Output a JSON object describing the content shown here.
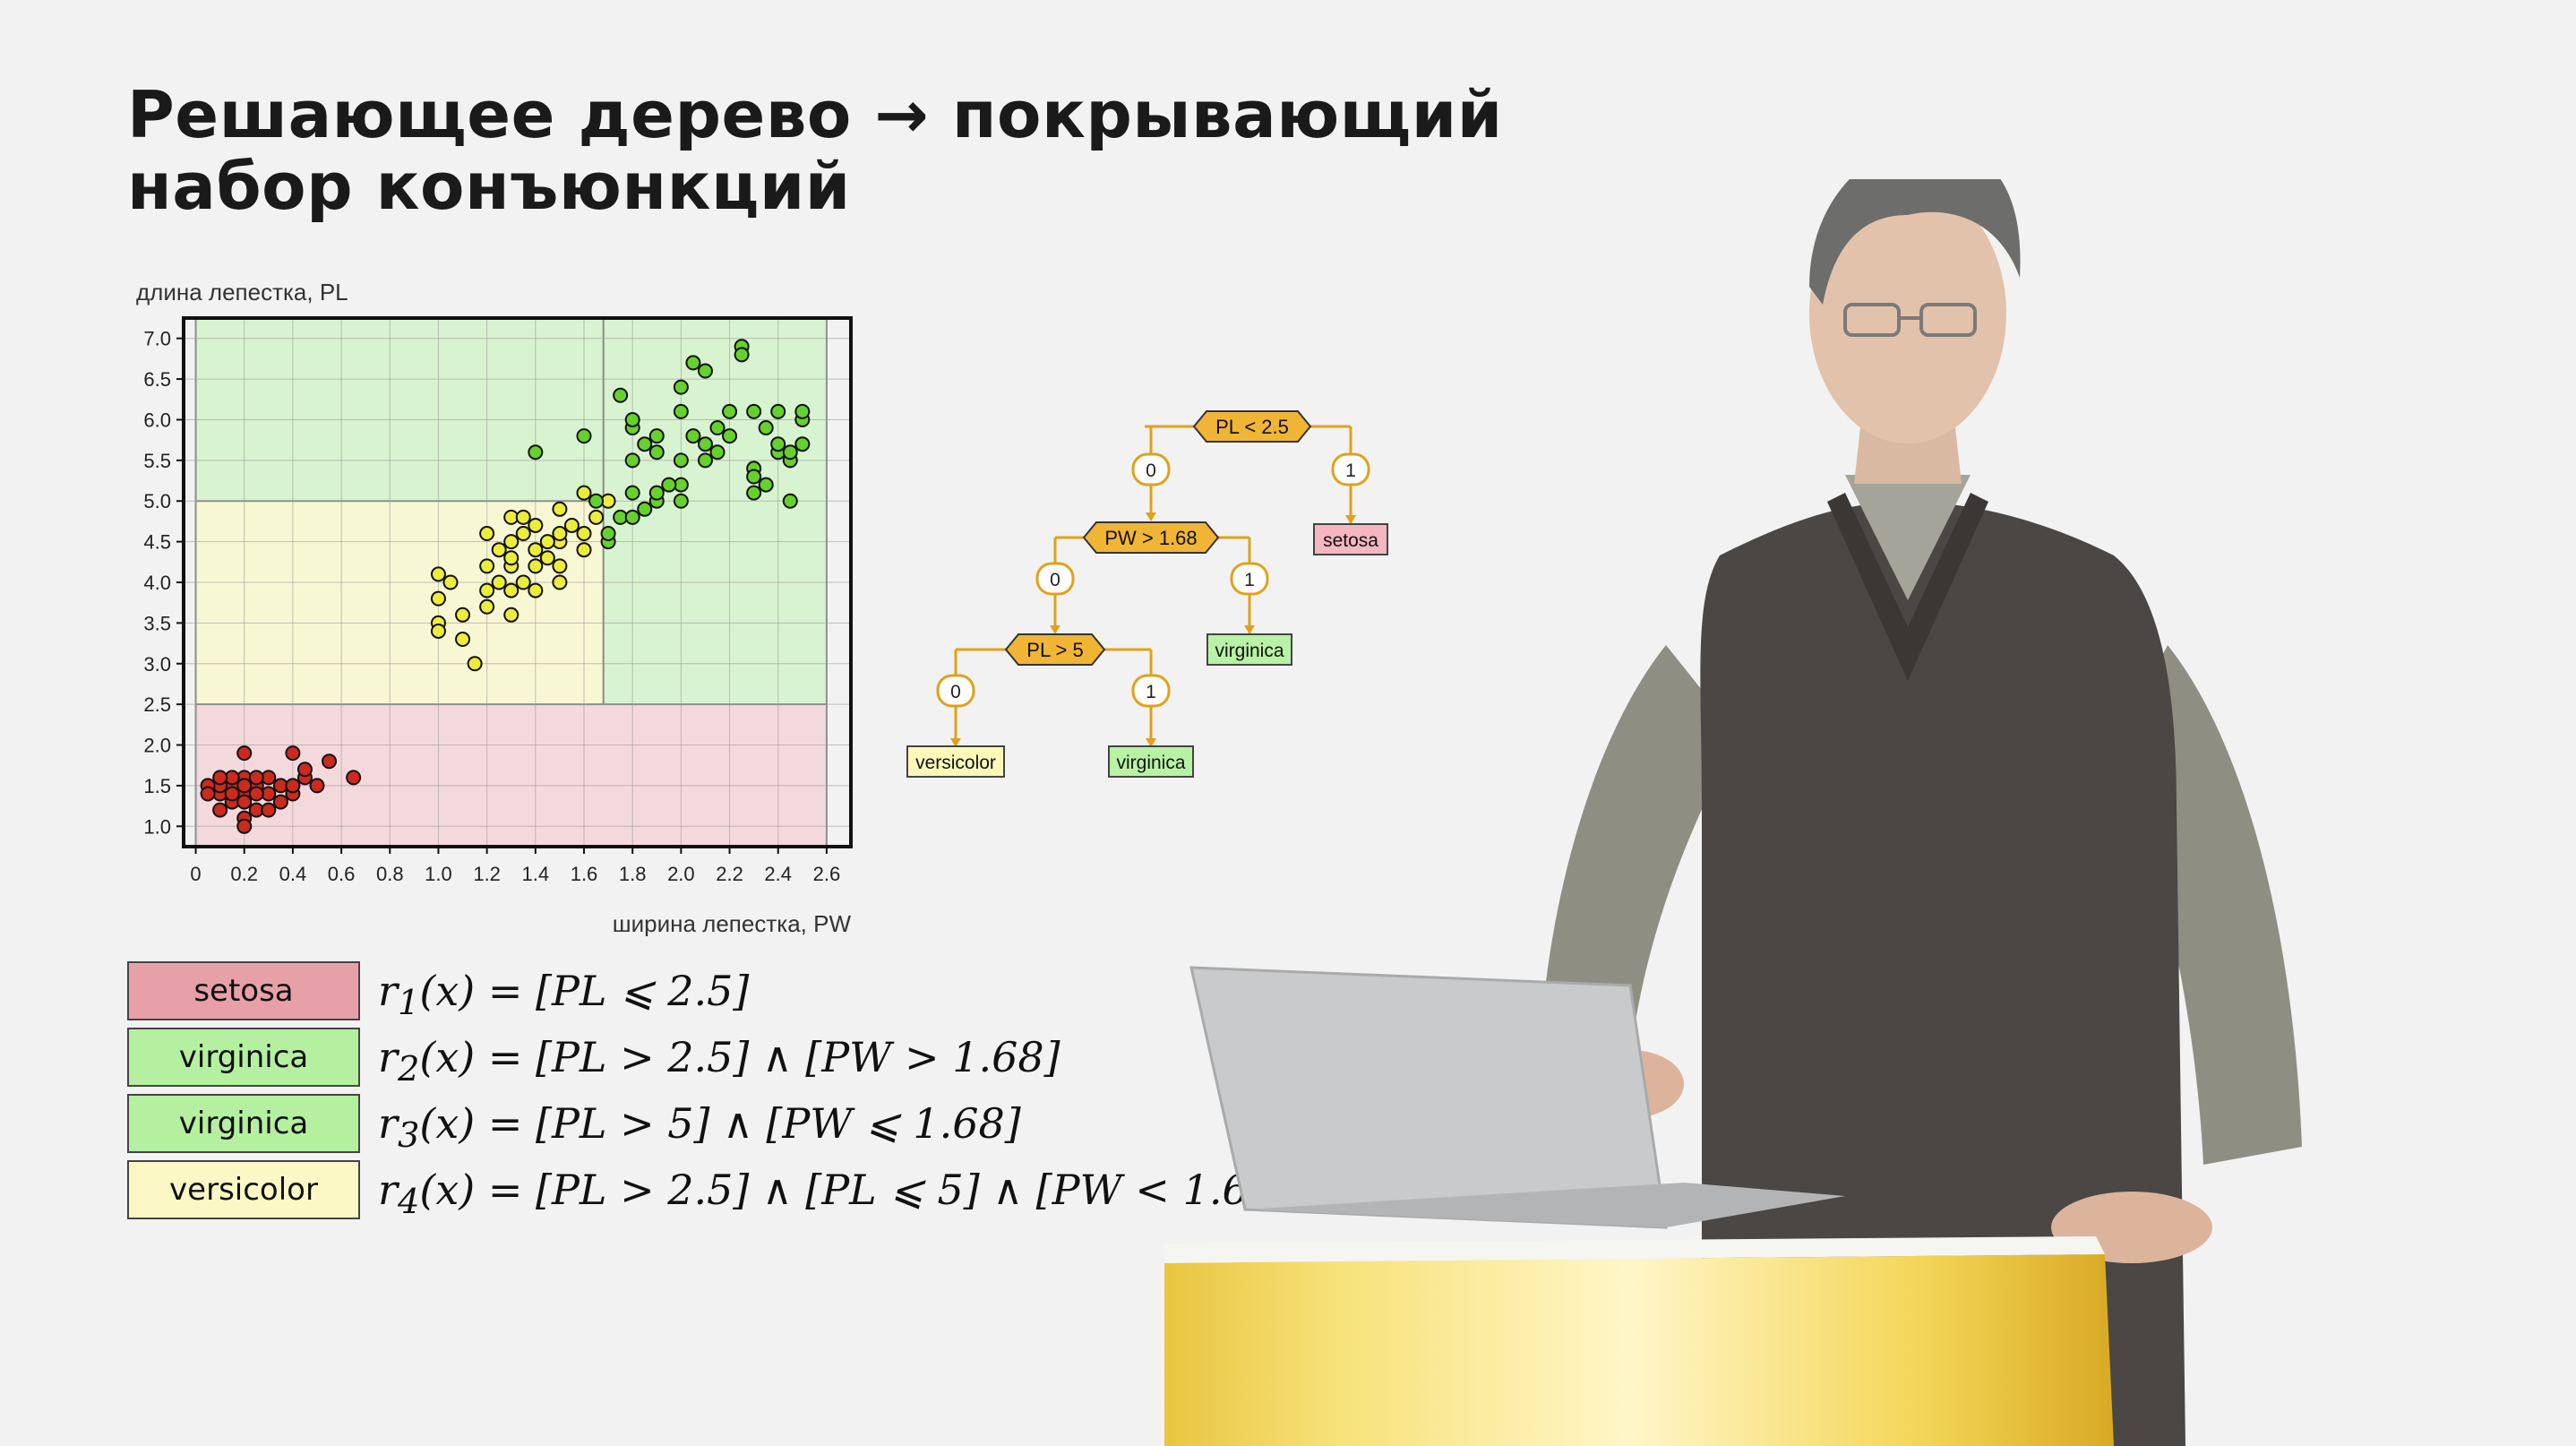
{
  "title": {
    "line1": "Решающее дерево → покрывающий",
    "line2": "набор конъюнкций"
  },
  "chart_data": {
    "type": "scatter",
    "ylabel": "длина лепестка, PL",
    "xlabel": "ширина лепестка, PW",
    "xlim": [
      -0.05,
      2.7
    ],
    "ylim": [
      0.75,
      7.25
    ],
    "xticks": [
      "0",
      "0.2",
      "0.4",
      "0.6",
      "0.8",
      "1.0",
      "1.2",
      "1.4",
      "1.6",
      "1.8",
      "2.0",
      "2.2",
      "2.4",
      "2.6"
    ],
    "yticks": [
      "1.0",
      "1.5",
      "2.0",
      "2.5",
      "3.0",
      "3.5",
      "4.0",
      "4.5",
      "5.0",
      "5.5",
      "6.0",
      "6.5",
      "7.0"
    ],
    "grid": true,
    "regions": [
      {
        "class": "setosa",
        "x": [
          0.0,
          2.6
        ],
        "y": [
          0.75,
          2.5
        ],
        "color": "#f4d9dc"
      },
      {
        "class": "versicolor",
        "x": [
          0.0,
          1.68
        ],
        "y": [
          2.5,
          5.0
        ],
        "color": "#f8f7d4"
      },
      {
        "class": "virginica",
        "x": [
          1.68,
          2.6
        ],
        "y": [
          2.5,
          5.0
        ],
        "color": "#d8f3cf"
      },
      {
        "class": "virginica",
        "x": [
          0.0,
          2.6
        ],
        "y": [
          5.0,
          7.25
        ],
        "color": "#d8f3cf"
      }
    ],
    "series": [
      {
        "class": "setosa",
        "color": "#cc2a1e",
        "points": [
          [
            0.1,
            1.4
          ],
          [
            0.15,
            1.5
          ],
          [
            0.2,
            1.4
          ],
          [
            0.25,
            1.5
          ],
          [
            0.3,
            1.4
          ],
          [
            0.2,
            1.6
          ],
          [
            0.15,
            1.3
          ],
          [
            0.1,
            1.5
          ],
          [
            0.2,
            1.3
          ],
          [
            0.25,
            1.4
          ],
          [
            0.3,
            1.6
          ],
          [
            0.35,
            1.5
          ],
          [
            0.4,
            1.4
          ],
          [
            0.45,
            1.6
          ],
          [
            0.5,
            1.5
          ],
          [
            0.2,
            1.9
          ],
          [
            0.4,
            1.9
          ],
          [
            0.45,
            1.7
          ],
          [
            0.55,
            1.8
          ],
          [
            0.65,
            1.6
          ],
          [
            0.2,
            1.1
          ],
          [
            0.2,
            1.0
          ],
          [
            0.1,
            1.2
          ],
          [
            0.05,
            1.5
          ],
          [
            0.15,
            1.6
          ],
          [
            0.35,
            1.3
          ],
          [
            0.25,
            1.2
          ],
          [
            0.3,
            1.2
          ],
          [
            0.2,
            1.5
          ],
          [
            0.1,
            1.6
          ],
          [
            0.4,
            1.5
          ],
          [
            0.15,
            1.4
          ],
          [
            0.05,
            1.4
          ],
          [
            0.25,
            1.6
          ]
        ]
      },
      {
        "class": "versicolor",
        "color": "#ecec3c",
        "points": [
          [
            1.0,
            3.5
          ],
          [
            1.1,
            3.3
          ],
          [
            1.0,
            3.4
          ],
          [
            1.1,
            3.6
          ],
          [
            1.2,
            3.7
          ],
          [
            1.0,
            4.1
          ],
          [
            1.05,
            4.0
          ],
          [
            1.0,
            3.8
          ],
          [
            1.15,
            3.0
          ],
          [
            1.3,
            3.6
          ],
          [
            1.2,
            3.9
          ],
          [
            1.25,
            4.0
          ],
          [
            1.3,
            4.2
          ],
          [
            1.3,
            4.5
          ],
          [
            1.35,
            4.0
          ],
          [
            1.4,
            4.7
          ],
          [
            1.3,
            4.8
          ],
          [
            1.4,
            4.4
          ],
          [
            1.5,
            4.5
          ],
          [
            1.5,
            4.9
          ],
          [
            1.5,
            4.6
          ],
          [
            1.45,
            4.3
          ],
          [
            1.6,
            4.6
          ],
          [
            1.6,
            5.1
          ],
          [
            1.7,
            5.0
          ],
          [
            1.4,
            4.2
          ],
          [
            1.3,
            3.9
          ],
          [
            1.35,
            4.6
          ],
          [
            1.5,
            4.2
          ],
          [
            1.55,
            4.7
          ],
          [
            1.6,
            4.4
          ],
          [
            1.2,
            4.2
          ],
          [
            1.3,
            4.3
          ],
          [
            1.4,
            3.9
          ],
          [
            1.45,
            4.5
          ],
          [
            1.25,
            4.4
          ],
          [
            1.35,
            4.8
          ],
          [
            1.5,
            4.0
          ],
          [
            1.2,
            4.6
          ],
          [
            1.65,
            4.8
          ]
        ]
      },
      {
        "class": "virginica",
        "color": "#66d12c",
        "points": [
          [
            1.4,
            5.6
          ],
          [
            1.6,
            5.8
          ],
          [
            1.7,
            4.5
          ],
          [
            1.75,
            4.8
          ],
          [
            1.8,
            4.8
          ],
          [
            1.8,
            5.1
          ],
          [
            1.8,
            5.5
          ],
          [
            1.8,
            5.9
          ],
          [
            1.8,
            6.0
          ],
          [
            1.85,
            4.9
          ],
          [
            1.9,
            5.0
          ],
          [
            1.9,
            5.1
          ],
          [
            1.9,
            5.6
          ],
          [
            1.9,
            5.8
          ],
          [
            2.0,
            5.0
          ],
          [
            2.0,
            5.2
          ],
          [
            2.0,
            5.5
          ],
          [
            2.0,
            6.1
          ],
          [
            2.0,
            6.4
          ],
          [
            2.05,
            6.7
          ],
          [
            2.1,
            5.5
          ],
          [
            2.1,
            5.7
          ],
          [
            2.1,
            6.6
          ],
          [
            2.15,
            5.6
          ],
          [
            2.2,
            5.8
          ],
          [
            2.2,
            6.1
          ],
          [
            2.25,
            6.9
          ],
          [
            2.3,
            6.1
          ],
          [
            2.3,
            5.4
          ],
          [
            2.3,
            5.1
          ],
          [
            2.3,
            5.3
          ],
          [
            2.35,
            5.9
          ],
          [
            2.4,
            5.6
          ],
          [
            2.4,
            5.7
          ],
          [
            2.4,
            6.1
          ],
          [
            2.45,
            5.5
          ],
          [
            2.45,
            5.6
          ],
          [
            2.5,
            6.0
          ],
          [
            2.5,
            5.7
          ],
          [
            2.5,
            6.1
          ],
          [
            1.75,
            6.3
          ],
          [
            1.85,
            5.7
          ],
          [
            1.95,
            5.2
          ],
          [
            2.05,
            5.8
          ],
          [
            2.15,
            5.9
          ],
          [
            2.25,
            6.8
          ],
          [
            2.35,
            5.2
          ],
          [
            2.45,
            5.0
          ],
          [
            1.65,
            5.0
          ],
          [
            1.7,
            4.6
          ]
        ]
      }
    ]
  },
  "tree": {
    "nodes": [
      {
        "label": "PL < 2.5"
      },
      {
        "label": "PW > 1.68"
      },
      {
        "label": "PL > 5"
      }
    ],
    "branches": [
      "0",
      "1",
      "0",
      "1",
      "0",
      "1"
    ],
    "leaves": [
      {
        "label": "setosa",
        "color": "#f4b6c0"
      },
      {
        "label": "virginica",
        "color": "#b8f2a4"
      },
      {
        "label": "versicolor",
        "color": "#fcf8b8"
      },
      {
        "label": "virginica",
        "color": "#b8f2a4"
      }
    ],
    "node_color": "#f1b536",
    "edge_color": "#e0a11c"
  },
  "rules": [
    {
      "class": "setosa",
      "color": "#e8a0a8",
      "formula_html": "r<sub>1</sub>(x) = [PL ⩽ 2.5]"
    },
    {
      "class": "virginica",
      "color": "#b5f0a0",
      "formula_html": "r<sub>2</sub>(x) = [PL &gt; 2.5] ∧ [PW &gt; 1.68]"
    },
    {
      "class": "virginica",
      "color": "#b5f0a0",
      "formula_html": "r<sub>3</sub>(x) = [PL &gt; 5] ∧ [PW ⩽ 1.68]"
    },
    {
      "class": "versicolor",
      "color": "#fbf8c6",
      "formula_html": "r<sub>4</sub>(x) = [PL &gt; 2.5] ∧ [PL ⩽ 5] ∧ [PW &lt; 1.68]"
    }
  ]
}
